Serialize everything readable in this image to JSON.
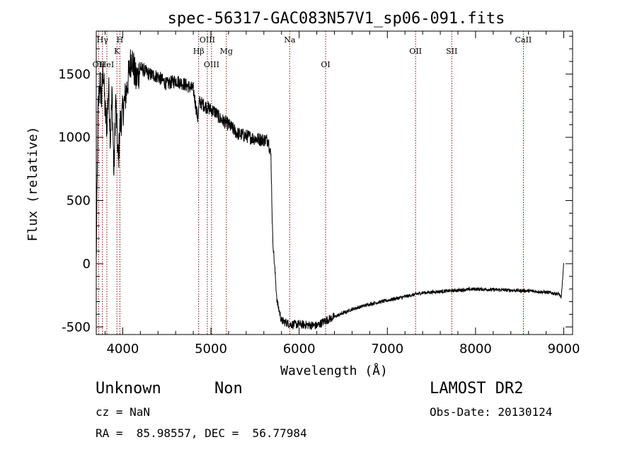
{
  "chart_data": {
    "type": "line",
    "title": "spec-56317-GAC083N57V1_sp06-091.fits",
    "xlabel": "Wavelength (Å)",
    "ylabel": "Flux (relative)",
    "xlim": [
      3700,
      9100
    ],
    "ylim": [
      -560,
      1840
    ],
    "x_ticks": [
      4000,
      5000,
      6000,
      7000,
      8000,
      9000
    ],
    "y_ticks": [
      -500,
      0,
      500,
      1000,
      1500
    ],
    "spectrum_anchors": [
      [
        3700,
        0
      ],
      [
        3720,
        1200
      ],
      [
        3740,
        1450
      ],
      [
        3760,
        1300
      ],
      [
        3780,
        1550
      ],
      [
        3800,
        1200
      ],
      [
        3820,
        1100
      ],
      [
        3840,
        1400
      ],
      [
        3860,
        1000
      ],
      [
        3880,
        1350
      ],
      [
        3900,
        700
      ],
      [
        3920,
        1300
      ],
      [
        3950,
        800
      ],
      [
        3970,
        1100
      ],
      [
        4000,
        1200
      ],
      [
        4050,
        1400
      ],
      [
        4100,
        1650
      ],
      [
        4150,
        1450
      ],
      [
        4200,
        1550
      ],
      [
        4300,
        1500
      ],
      [
        4400,
        1480
      ],
      [
        4500,
        1420
      ],
      [
        4600,
        1450
      ],
      [
        4700,
        1420
      ],
      [
        4800,
        1380
      ],
      [
        4850,
        1150
      ],
      [
        4870,
        1280
      ],
      [
        4950,
        1240
      ],
      [
        5050,
        1200
      ],
      [
        5100,
        1150
      ],
      [
        5200,
        1100
      ],
      [
        5300,
        1030
      ],
      [
        5400,
        1010
      ],
      [
        5500,
        990
      ],
      [
        5600,
        980
      ],
      [
        5650,
        980
      ],
      [
        5680,
        850
      ],
      [
        5700,
        200
      ],
      [
        5750,
        -300
      ],
      [
        5800,
        -450
      ],
      [
        5900,
        -480
      ],
      [
        6000,
        -480
      ],
      [
        6200,
        -490
      ],
      [
        6300,
        -450
      ],
      [
        6400,
        -420
      ],
      [
        6600,
        -360
      ],
      [
        6800,
        -320
      ],
      [
        7000,
        -290
      ],
      [
        7200,
        -260
      ],
      [
        7400,
        -230
      ],
      [
        7600,
        -220
      ],
      [
        7800,
        -210
      ],
      [
        8000,
        -200
      ],
      [
        8200,
        -205
      ],
      [
        8400,
        -210
      ],
      [
        8600,
        -215
      ],
      [
        8800,
        -225
      ],
      [
        8950,
        -240
      ],
      [
        8970,
        -280
      ],
      [
        9000,
        0
      ]
    ],
    "emission_lines": [
      {
        "label": "OII",
        "x": 3727,
        "row": 2
      },
      {
        "label": "Hγ",
        "x": 3770,
        "row": 0
      },
      {
        "label": "HeI",
        "x": 3820,
        "row": 2
      },
      {
        "label": "H",
        "x": 3968,
        "row": 0
      },
      {
        "label": "K",
        "x": 3934,
        "row": 1
      },
      {
        "label": "Hβ",
        "x": 4861,
        "row": 1
      },
      {
        "label": "OIII",
        "x": 4959,
        "row": 0
      },
      {
        "label": "OIII",
        "x": 5007,
        "row": 2
      },
      {
        "label": "Mg",
        "x": 5175,
        "row": 1
      },
      {
        "label": "Na",
        "x": 5893,
        "row": 0
      },
      {
        "label": "OI",
        "x": 6300,
        "row": 2
      },
      {
        "label": "OII",
        "x": 7320,
        "row": 1
      },
      {
        "label": "SII",
        "x": 7730,
        "row": 1
      },
      {
        "label": "CaII",
        "x": 8542,
        "row": 0
      }
    ]
  },
  "info": {
    "object_class": "Unknown",
    "subclass": "Non",
    "survey": "LAMOST DR2",
    "cz": "cz = NaN",
    "obs_date": "Obs-Date: 20130124",
    "coords": "RA =  85.98557, DEC =  56.77984"
  },
  "colors": {
    "spectrum": "#000000",
    "line_marker": "#8b0000"
  }
}
